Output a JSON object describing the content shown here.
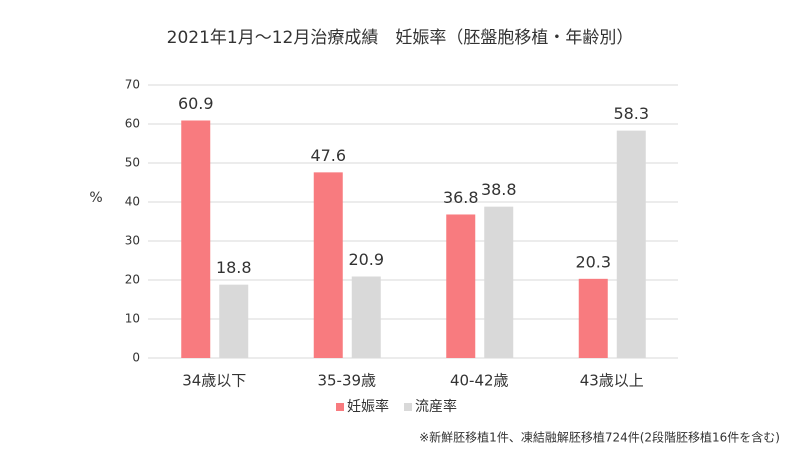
{
  "chart_data": {
    "type": "bar",
    "title": "2021年1月～12月治療成績　妊娠率（胚盤胞移植・年齢別）",
    "y_label": "%",
    "categories": [
      "34歳以下",
      "35-39歳",
      "40-42歳",
      "43歳以上"
    ],
    "series": [
      {
        "name": "妊娠率",
        "color": "#f87b7f",
        "values": [
          60.9,
          47.6,
          36.8,
          20.3
        ]
      },
      {
        "name": "流産率",
        "color": "#d9d9d9",
        "values": [
          18.8,
          20.9,
          38.8,
          58.3
        ]
      }
    ],
    "ylim": [
      0,
      70
    ],
    "yticks": [
      0,
      10,
      20,
      30,
      40,
      50,
      60,
      70
    ],
    "grid": true,
    "legend": "bottom",
    "footnote": "※新鮮胚移植1件、凍結融解胚移植724件(2段階胚移植16件を含む)"
  }
}
